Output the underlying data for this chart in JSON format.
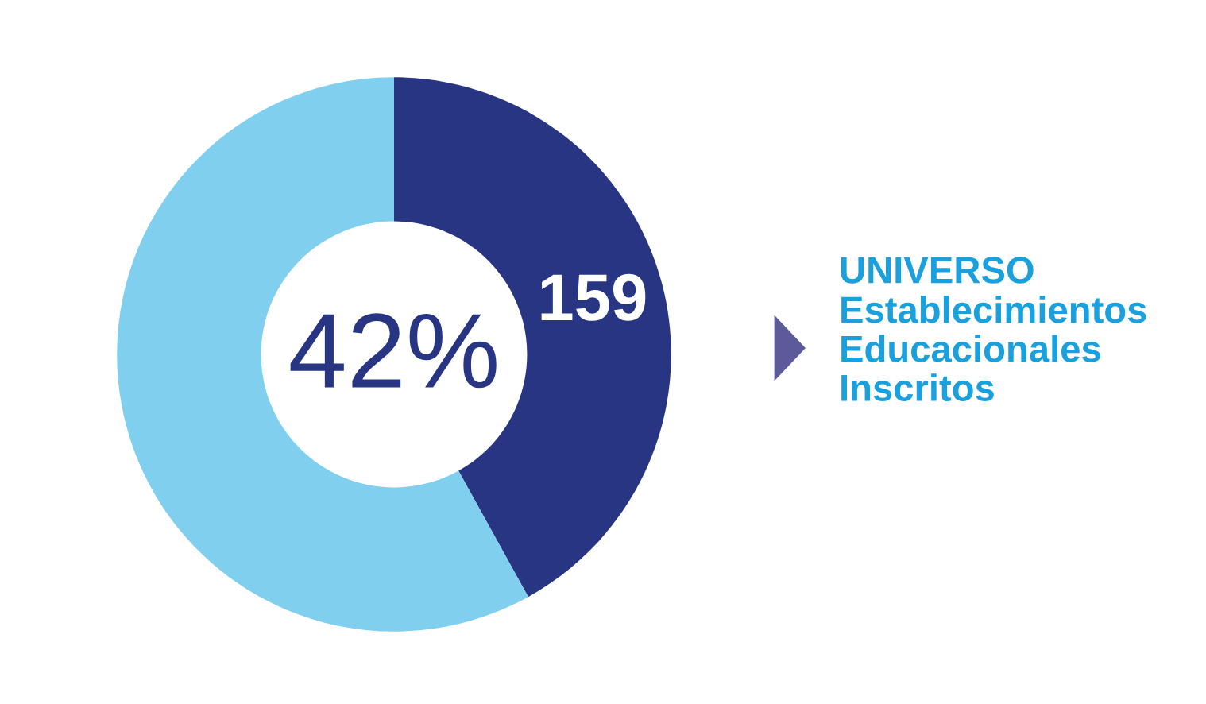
{
  "chart_data": {
    "type": "donut",
    "title": "UNIVERSO",
    "subtitle": "Establecimientos\nEducacionales\nInscritos",
    "categories": [
      null,
      null
    ],
    "values": [
      159,
      220
    ],
    "colors": [
      "#283583",
      "#80cfef"
    ],
    "value_labels": [
      "159",
      null
    ],
    "annotations": [
      "42%"
    ],
    "legend": false
  }
}
